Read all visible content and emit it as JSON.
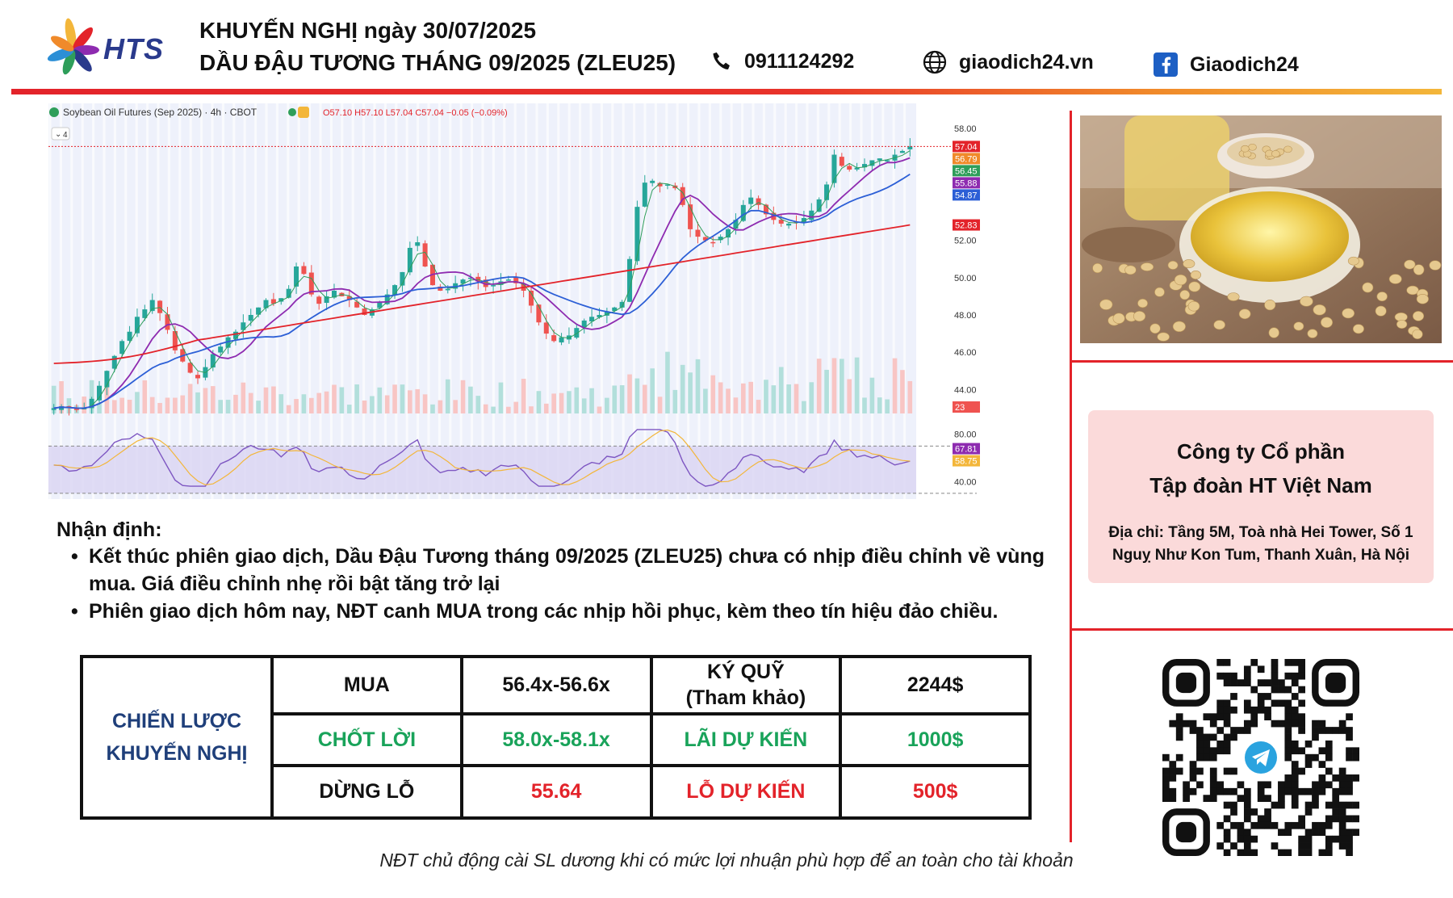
{
  "header": {
    "brand": "HTS",
    "line1": "KHUYẾN NGHỊ ngày 30/07/2025",
    "line2": "DẦU ĐẬU TƯƠNG THÁNG 09/2025 (ZLEU25)",
    "phone": "0911124292",
    "website": "giaodich24.vn",
    "facebook": "Giaodich24",
    "icons": [
      "phone-icon",
      "globe-icon",
      "facebook-icon"
    ]
  },
  "chart_data": {
    "type": "candlestick",
    "title": "Soybean Oil Futures (Sep 2025) · 4h · CBOT",
    "ohlc_label": "O57.10 H57.10 L57.04 C57.04 −0.05 (−0.09%)",
    "indicator_count": "4",
    "price_axis_ticks": [
      "58.00",
      "52.00",
      "50.00",
      "48.00",
      "46.00",
      "44.00"
    ],
    "price_range": [
      42.8,
      58.4
    ],
    "price_tags": [
      {
        "value": "57.04",
        "color": "#e3232a"
      },
      {
        "value": "56.79",
        "color": "#f08a2a"
      },
      {
        "value": "56.45",
        "color": "#2e9e5a"
      },
      {
        "value": "55.88",
        "color": "#8e2bb0"
      },
      {
        "value": "54.87",
        "color": "#2c5fd6"
      },
      {
        "value": "52.83",
        "color": "#e3232a"
      }
    ],
    "volume_tag": "23",
    "close_series": [
      43.0,
      43.1,
      43.0,
      42.9,
      43.0,
      43.5,
      44.2,
      45.0,
      45.8,
      46.6,
      47.1,
      47.9,
      48.3,
      48.8,
      48.1,
      47.2,
      46.1,
      45.5,
      44.9,
      44.6,
      45.2,
      45.9,
      46.3,
      46.8,
      47.1,
      47.6,
      48.0,
      48.4,
      48.8,
      48.6,
      48.9,
      49.4,
      50.6,
      50.2,
      49.1,
      48.6,
      49.0,
      49.3,
      49.0,
      48.8,
      48.4,
      48.0,
      48.3,
      48.7,
      49.1,
      49.6,
      50.3,
      51.6,
      51.9,
      50.6,
      49.6,
      49.3,
      49.4,
      49.7,
      49.9,
      50.0,
      49.8,
      49.5,
      49.6,
      49.8,
      49.9,
      49.7,
      49.3,
      48.5,
      47.6,
      47.0,
      46.6,
      46.8,
      46.9,
      47.3,
      47.7,
      47.9,
      48.0,
      48.2,
      48.4,
      48.7,
      51.0,
      53.8,
      55.1,
      55.2,
      54.9,
      55.0,
      54.8,
      53.9,
      52.6,
      52.2,
      52.0,
      51.9,
      52.2,
      52.6,
      53.1,
      53.9,
      54.3,
      53.9,
      53.4,
      53.1,
      52.9,
      52.9,
      53.0,
      53.2,
      53.6,
      54.2,
      55.0,
      56.6,
      56.0,
      55.8,
      55.9,
      56.1,
      56.3,
      56.4,
      56.3,
      56.6,
      56.8,
      57.04
    ],
    "moving_averages": [
      {
        "name": "MA green",
        "color": "#2e9e5a"
      },
      {
        "name": "MA purple",
        "color": "#8e2bb0"
      },
      {
        "name": "MA blue",
        "color": "#2c5fd6"
      },
      {
        "name": "MA red",
        "color": "#e3232a"
      }
    ],
    "oscillator": {
      "axis_ticks": [
        "80.00",
        "40.00"
      ],
      "range": [
        32,
        88
      ],
      "tags": [
        {
          "value": "67.81",
          "color": "#8e2bb0"
        },
        {
          "value": "58.75",
          "color": "#f3b63a"
        }
      ],
      "levels": [
        70,
        30
      ]
    }
  },
  "analysis": {
    "heading": "Nhận định:",
    "bullets": [
      "Kết thúc phiên giao dịch, Dầu Đậu Tương tháng 09/2025 (ZLEU25) chưa có nhịp điều chỉnh về vùng mua. Giá điều chỉnh nhẹ rồi bật tăng trở lại",
      "Phiên giao dịch hôm nay, NĐT canh MUA trong các nhịp hồi phục, kèm theo tín hiệu đảo chiều."
    ]
  },
  "strategy": {
    "label_line1": "CHIẾN LƯỢC",
    "label_line2": "KHUYẾN NGHỊ",
    "buy_label": "MUA",
    "buy_value": "56.4x-56.6x",
    "margin_label_line1": "KÝ QUỸ",
    "margin_label_line2": "(Tham khảo)",
    "margin_value": "2244$",
    "tp_label": "CHỐT LỜI",
    "tp_value": "58.0x-58.1x",
    "profit_label": "LÃI DỰ KIẾN",
    "profit_value": "1000$",
    "sl_label": "DỪNG LỖ",
    "sl_value": "55.64",
    "loss_label": "LỖ DỰ KIẾN",
    "loss_value": "500$"
  },
  "company": {
    "name_line1": "Công ty Cổ phần",
    "name_line2": "Tập đoàn HT Việt Nam",
    "address_line1": "Địa chỉ: Tầng 5M, Toà nhà Hei Tower, Số 1",
    "address_line2": "Nguỵ Như Kon Tum, Thanh Xuân, Hà Nội"
  },
  "footer_note": "NĐT chủ động cài SL dương khi có mức lợi nhuận phù hợp để an toàn cho tài khoản",
  "colors": {
    "accent_red": "#e3232a",
    "navy": "#1f3f7a",
    "green": "#19a35a",
    "company_bg": "#fbdada"
  }
}
